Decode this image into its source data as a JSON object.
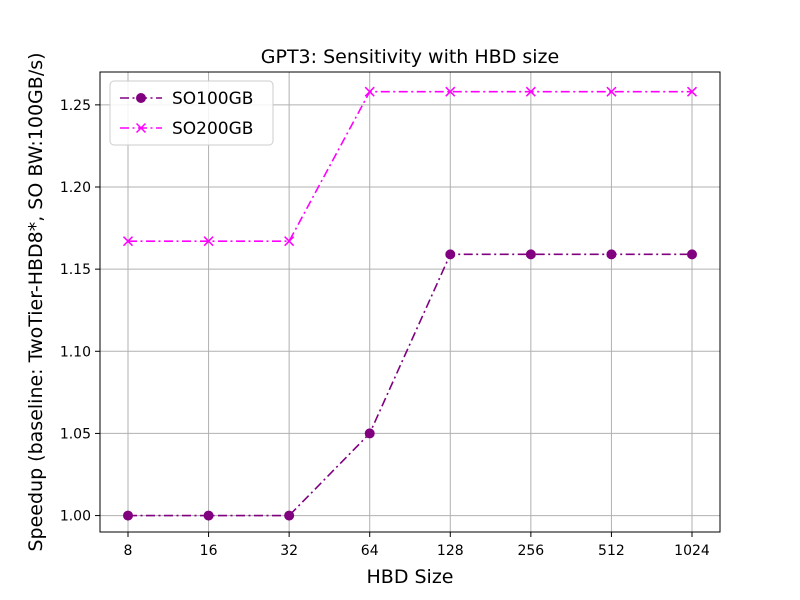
{
  "chart_data": {
    "type": "line",
    "title": "GPT3: Sensitivity with HBD size",
    "xlabel": "HBD Size",
    "ylabel": "Speedup (baseline: TwoTier-HBD8*, SO BW:100GB/s)",
    "categories": [
      "8",
      "16",
      "32",
      "64",
      "128",
      "256",
      "512",
      "1024"
    ],
    "yticks": [
      "1.00",
      "1.05",
      "1.10",
      "1.15",
      "1.20",
      "1.25"
    ],
    "ylim": [
      0.99,
      1.27
    ],
    "grid": true,
    "legend_position": "top-left",
    "series": [
      {
        "name": "SO100GB",
        "color": "#800080",
        "marker": "circle",
        "linestyle": "dashdot",
        "values": [
          1.0,
          1.0,
          1.0,
          1.05,
          1.159,
          1.159,
          1.159,
          1.159
        ]
      },
      {
        "name": "SO200GB",
        "color": "#ff00ff",
        "marker": "x",
        "linestyle": "dashdot",
        "values": [
          1.167,
          1.167,
          1.167,
          1.258,
          1.258,
          1.258,
          1.258,
          1.258
        ]
      }
    ]
  }
}
